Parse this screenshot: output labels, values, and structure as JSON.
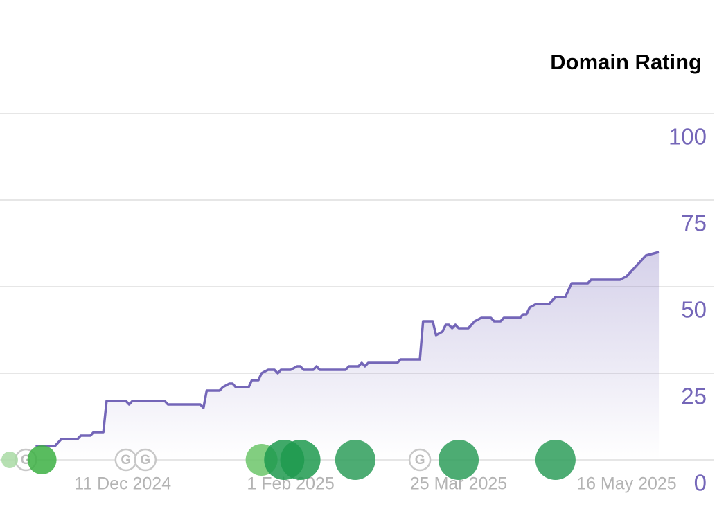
{
  "chart_data": {
    "type": "line",
    "title": "Domain Rating",
    "x": [
      "2024-11-14",
      "2024-11-20",
      "2024-11-22",
      "2024-11-27",
      "2024-11-28",
      "2024-12-01",
      "2024-12-02",
      "2024-12-05",
      "2024-12-06",
      "2024-12-12",
      "2024-12-13",
      "2024-12-14",
      "2024-12-24",
      "2024-12-25",
      "2025-01-04",
      "2025-01-05",
      "2025-01-06",
      "2025-01-10",
      "2025-01-11",
      "2025-01-13",
      "2025-01-14",
      "2025-01-15",
      "2025-01-19",
      "2025-01-20",
      "2025-01-22",
      "2025-01-23",
      "2025-01-25",
      "2025-01-27",
      "2025-01-28",
      "2025-01-29",
      "2025-02-01",
      "2025-02-03",
      "2025-02-04",
      "2025-02-05",
      "2025-02-08",
      "2025-02-09",
      "2025-02-10",
      "2025-02-18",
      "2025-02-19",
      "2025-02-22",
      "2025-02-23",
      "2025-02-24",
      "2025-02-25",
      "2025-03-06",
      "2025-03-07",
      "2025-03-13",
      "2025-03-14",
      "2025-03-17",
      "2025-03-18",
      "2025-03-20",
      "2025-03-21",
      "2025-03-22",
      "2025-03-23",
      "2025-03-24",
      "2025-03-25",
      "2025-03-28",
      "2025-03-30",
      "2025-04-01",
      "2025-04-04",
      "2025-04-05",
      "2025-04-07",
      "2025-04-08",
      "2025-04-13",
      "2025-04-14",
      "2025-04-15",
      "2025-04-16",
      "2025-04-18",
      "2025-04-22",
      "2025-04-24",
      "2025-04-27",
      "2025-04-29",
      "2025-05-04",
      "2025-05-05",
      "2025-05-14",
      "2025-05-16",
      "2025-05-20",
      "2025-05-22",
      "2025-05-26"
    ],
    "series": [
      {
        "name": "Domain Rating",
        "color": "#7466b8",
        "values": [
          4,
          4,
          6,
          6,
          7,
          7,
          8,
          8,
          17,
          17,
          16,
          17,
          17,
          16,
          16,
          15,
          20,
          20,
          21,
          22,
          22,
          21,
          21,
          23,
          23,
          25,
          26,
          26,
          25,
          26,
          26,
          27,
          27,
          26,
          26,
          27,
          26,
          26,
          27,
          27,
          28,
          27,
          28,
          28,
          29,
          29,
          40,
          40,
          36,
          37,
          39,
          39,
          38,
          39,
          38,
          38,
          40,
          41,
          41,
          40,
          40,
          41,
          41,
          42,
          42,
          44,
          45,
          45,
          47,
          47,
          51,
          51,
          52,
          52,
          53,
          57,
          59,
          60
        ]
      }
    ],
    "xlim": [
      "2024-11-03",
      "2025-06-13"
    ],
    "xticks": [
      {
        "value": "2024-12-11",
        "label": "11 Dec 2024"
      },
      {
        "value": "2025-02-01",
        "label": "1 Feb 2025"
      },
      {
        "value": "2025-03-25",
        "label": "25 Mar 2025"
      },
      {
        "value": "2025-05-16",
        "label": "16 May 2025"
      }
    ],
    "ylim": [
      0,
      100
    ],
    "yticks": [
      0,
      25,
      50,
      75,
      100
    ],
    "grid": true,
    "events": [
      {
        "x": "2024-11-06",
        "color": "#a9dba4"
      },
      {
        "x": "2024-11-16",
        "color": "#3cb043"
      },
      {
        "x": "2025-01-23",
        "color": "#6cc56a"
      },
      {
        "x": "2025-01-30",
        "color": "#1f9a4f"
      },
      {
        "x": "2025-02-04",
        "color": "#1f9a4f"
      },
      {
        "x": "2025-02-21",
        "color": "#2e9e5a"
      },
      {
        "x": "2025-03-25",
        "color": "#2e9e5a"
      },
      {
        "x": "2025-04-24",
        "color": "#2e9e5a"
      }
    ],
    "updates": [
      {
        "x": "2024-11-11",
        "label": "G"
      },
      {
        "x": "2024-12-12",
        "label": "G"
      },
      {
        "x": "2024-12-18",
        "label": "G"
      },
      {
        "x": "2025-03-13",
        "label": "G"
      }
    ]
  }
}
